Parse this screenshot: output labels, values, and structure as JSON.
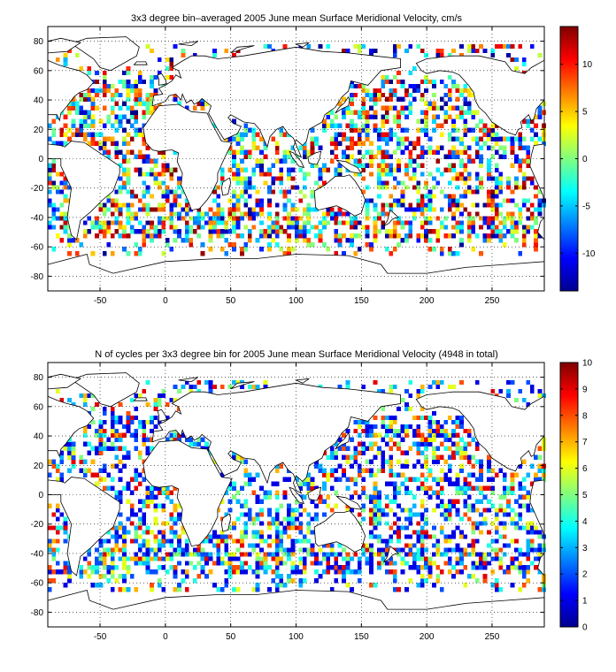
{
  "chart_data": [
    {
      "type": "heatmap",
      "title": "3x3 degree bin–averaged 2005 June mean Surface Meridional Velocity, cm/s",
      "xlim": [
        -90,
        290
      ],
      "ylim": [
        -90,
        90
      ],
      "x_ticks": [
        -50,
        0,
        50,
        100,
        150,
        200,
        250
      ],
      "y_ticks": [
        80,
        60,
        40,
        20,
        0,
        -20,
        -40,
        -60,
        -80
      ],
      "grid": true,
      "bin_size_degrees": 3,
      "colormap": "jet",
      "colorbar": {
        "range": [
          -14,
          14
        ],
        "ticks": [
          10,
          5,
          0,
          -5,
          -10
        ]
      }
    },
    {
      "type": "heatmap",
      "title": "N of cycles per 3x3 degree bin for 2005 June mean Surface Meridional Velocity (4948 in total)",
      "xlim": [
        -90,
        290
      ],
      "ylim": [
        -90,
        90
      ],
      "x_ticks": [
        -50,
        0,
        50,
        100,
        150,
        200,
        250
      ],
      "y_ticks": [
        80,
        60,
        40,
        20,
        0,
        -20,
        -40,
        -60,
        -80
      ],
      "grid": true,
      "bin_size_degrees": 3,
      "colormap": "jet",
      "colorbar": {
        "range": [
          0,
          10
        ],
        "ticks": [
          10,
          9,
          8,
          7,
          6,
          5,
          4,
          3,
          2,
          1,
          0
        ]
      }
    }
  ]
}
